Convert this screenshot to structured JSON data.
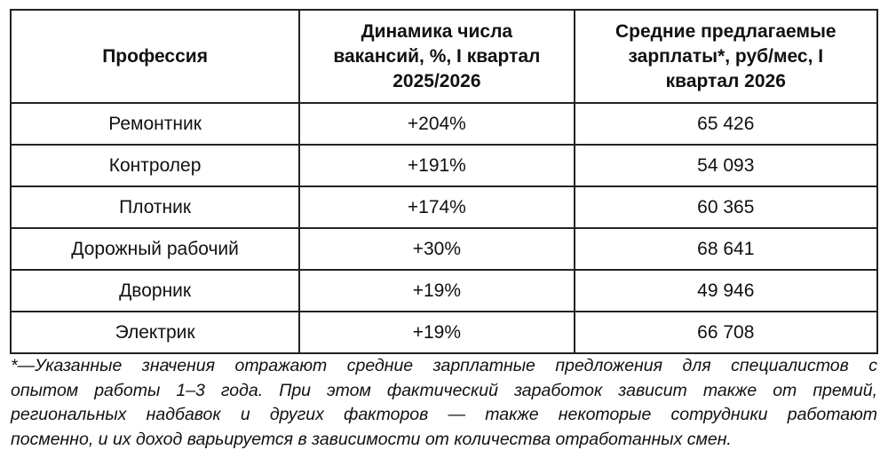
{
  "table": {
    "headers": [
      "Профессия",
      "Динамика числа вакансий, %, I квартал 2025/2026",
      "Средние предлагаемые зарплаты*, руб/мес, I квартал 2026"
    ],
    "rows": [
      [
        "Ремонтник",
        "+204%",
        "65 426"
      ],
      [
        "Контролер",
        "+191%",
        "54 093"
      ],
      [
        "Плотник",
        "+174%",
        "60 365"
      ],
      [
        "Дорожный рабочий",
        "+30%",
        "68 641"
      ],
      [
        "Дворник",
        "+19%",
        "49 946"
      ],
      [
        "Электрик",
        "+19%",
        "66 708"
      ]
    ]
  },
  "footnote": {
    "lines": [
      "*—Указанные значения отражают средние зарплатные предложения для специалистов с",
      "опытом работы 1–3 года. При этом фактический заработок зависит также от премий,",
      "региональных надбавок и других факторов — также некоторые сотрудники работают",
      "посменно, и их доход варьируется в зависимости от количества отработанных смен."
    ]
  }
}
